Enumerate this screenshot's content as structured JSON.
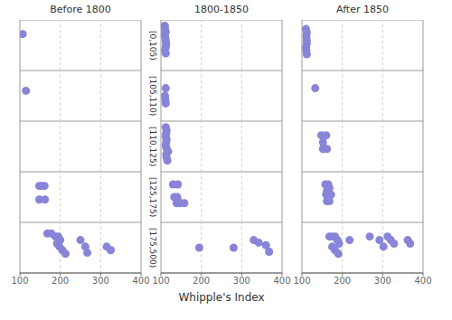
{
  "chart_data": [
    {
      "type": "scatter",
      "title": "Before 1800",
      "annotations": [
        "[0,105)"
      ],
      "x": [
        107
      ],
      "values": [
        0.72
      ],
      "xlim": [
        100,
        400
      ],
      "xticks": [
        100,
        200,
        300,
        400
      ],
      "ylim": [
        0,
        1
      ],
      "yticks": [],
      "grid": true,
      "tick_labels": false
    },
    {
      "type": "scatter",
      "title": "1800-1850",
      "x": [
        108,
        110,
        112,
        110,
        111,
        112,
        110,
        111,
        113,
        112,
        110,
        112
      ],
      "values": [
        0.88,
        0.82,
        0.76,
        0.7,
        0.64,
        0.58,
        0.88,
        0.76,
        0.52,
        0.46,
        0.4,
        0.34
      ],
      "xlim": [
        100,
        400
      ],
      "xticks": [
        100,
        200,
        300,
        400
      ],
      "ylim": [
        0,
        1
      ],
      "yticks": [],
      "grid": true,
      "tick_labels": false
    },
    {
      "type": "scatter",
      "title": "After 1850",
      "x": [
        110,
        112,
        111,
        112,
        112,
        110,
        111,
        112
      ],
      "values": [
        0.82,
        0.75,
        0.68,
        0.6,
        0.53,
        0.46,
        0.39,
        0.32
      ],
      "xlim": [
        100,
        400
      ],
      "xticks": [
        100,
        200,
        300,
        400
      ],
      "ylim": [
        0,
        1
      ],
      "yticks": [],
      "grid": true,
      "tick_labels": false
    },
    {
      "type": "scatter",
      "annotations": [
        "[105,110)"
      ],
      "x": [
        115
      ],
      "values": [
        0.6
      ],
      "xlim": [
        100,
        400
      ],
      "xticks": [
        100,
        200,
        300,
        400
      ],
      "ylim": [
        0,
        1
      ],
      "yticks": [],
      "grid": true,
      "tick_labels": false
    },
    {
      "type": "scatter",
      "x": [
        112,
        110,
        111,
        112
      ],
      "values": [
        0.65,
        0.5,
        0.42,
        0.35
      ],
      "xlim": [
        100,
        400
      ],
      "xticks": [
        100,
        200,
        300,
        400
      ],
      "ylim": [
        0,
        1
      ],
      "yticks": [],
      "grid": true,
      "tick_labels": false
    },
    {
      "type": "scatter",
      "x": [
        133
      ],
      "values": [
        0.65
      ],
      "xlim": [
        100,
        400
      ],
      "xticks": [
        100,
        200,
        300,
        400
      ],
      "ylim": [
        0,
        1
      ],
      "yticks": [],
      "grid": true,
      "tick_labels": false
    },
    {
      "type": "scatter",
      "annotations": [
        "[110,125)"
      ],
      "x": [],
      "values": [],
      "xlim": [
        100,
        400
      ],
      "xticks": [
        100,
        200,
        300,
        400
      ],
      "ylim": [
        0,
        1
      ],
      "yticks": [],
      "grid": true,
      "tick_labels": false
    },
    {
      "type": "scatter",
      "x": [
        112,
        114,
        113,
        112,
        114,
        113,
        112,
        114,
        118,
        113,
        114,
        116
      ],
      "values": [
        0.88,
        0.82,
        0.76,
        0.7,
        0.64,
        0.58,
        0.52,
        0.46,
        0.4,
        0.34,
        0.28,
        0.22
      ],
      "xlim": [
        100,
        400
      ],
      "xticks": [
        100,
        200,
        300,
        400
      ],
      "ylim": [
        0,
        1
      ],
      "yticks": [],
      "grid": true,
      "tick_labels": false
    },
    {
      "type": "scatter",
      "x": [
        148,
        152,
        160,
        152,
        162
      ],
      "values": [
        0.72,
        0.58,
        0.72,
        0.45,
        0.45
      ],
      "xlim": [
        100,
        400
      ],
      "xticks": [
        100,
        200,
        300,
        400
      ],
      "ylim": [
        0,
        1
      ],
      "yticks": [],
      "grid": true,
      "tick_labels": false
    },
    {
      "type": "scatter",
      "annotations": [
        "[125,175)"
      ],
      "x": [
        148,
        154,
        161,
        148,
        162
      ],
      "values": [
        0.72,
        0.72,
        0.72,
        0.45,
        0.45
      ],
      "xlim": [
        100,
        400
      ],
      "xticks": [
        100,
        200,
        300,
        400
      ],
      "ylim": [
        0,
        1
      ],
      "yticks": [],
      "grid": true,
      "tick_labels": false
    },
    {
      "type": "scatter",
      "x": [
        130,
        142,
        133,
        140,
        142,
        139,
        147,
        158
      ],
      "values": [
        0.75,
        0.75,
        0.5,
        0.5,
        0.44,
        0.38,
        0.38,
        0.38
      ],
      "xlim": [
        100,
        400
      ],
      "xticks": [
        100,
        200,
        300,
        400
      ],
      "ylim": [
        0,
        1
      ],
      "yticks": [],
      "grid": true,
      "tick_labels": false
    },
    {
      "type": "scatter",
      "x": [
        158,
        165,
        168,
        162,
        160,
        172,
        162,
        168
      ],
      "values": [
        0.75,
        0.75,
        0.68,
        0.62,
        0.55,
        0.55,
        0.42,
        0.42
      ],
      "xlim": [
        100,
        400
      ],
      "xticks": [
        100,
        200,
        300,
        400
      ],
      "ylim": [
        0,
        1
      ],
      "yticks": [],
      "grid": true,
      "tick_labels": false
    },
    {
      "type": "scatter",
      "annotations": [
        "[175,500)"
      ],
      "x": [
        168,
        178,
        188,
        195,
        200,
        192,
        198,
        205,
        213,
        250,
        262,
        267,
        315,
        325
      ],
      "values": [
        0.78,
        0.78,
        0.72,
        0.72,
        0.65,
        0.58,
        0.52,
        0.45,
        0.38,
        0.65,
        0.52,
        0.4,
        0.52,
        0.45
      ],
      "xlim": [
        100,
        400
      ],
      "xticks": [
        100,
        200,
        300,
        400
      ],
      "ylim": [
        0,
        1
      ],
      "yticks": [],
      "grid": true,
      "tick_labels": "x"
    },
    {
      "type": "scatter",
      "xlabel": "Whipple's Index",
      "x": [
        195,
        280,
        330,
        342,
        360,
        368
      ],
      "values": [
        0.5,
        0.5,
        0.65,
        0.6,
        0.55,
        0.42
      ],
      "xlim": [
        100,
        400
      ],
      "xticks": [
        100,
        200,
        300,
        400
      ],
      "ylim": [
        0,
        1
      ],
      "yticks": [],
      "grid": true,
      "tick_labels": "x"
    },
    {
      "type": "scatter",
      "x": [
        168,
        175,
        182,
        188,
        192,
        175,
        182,
        190,
        218,
        268,
        292,
        302,
        312,
        320,
        328,
        362,
        368
      ],
      "values": [
        0.72,
        0.72,
        0.72,
        0.65,
        0.58,
        0.52,
        0.45,
        0.38,
        0.65,
        0.72,
        0.65,
        0.52,
        0.72,
        0.65,
        0.58,
        0.65,
        0.58
      ],
      "xlim": [
        100,
        400
      ],
      "xticks": [
        100,
        200,
        300,
        400
      ],
      "ylim": [
        0,
        1
      ],
      "yticks": [],
      "grid": true,
      "tick_labels": "x"
    }
  ]
}
